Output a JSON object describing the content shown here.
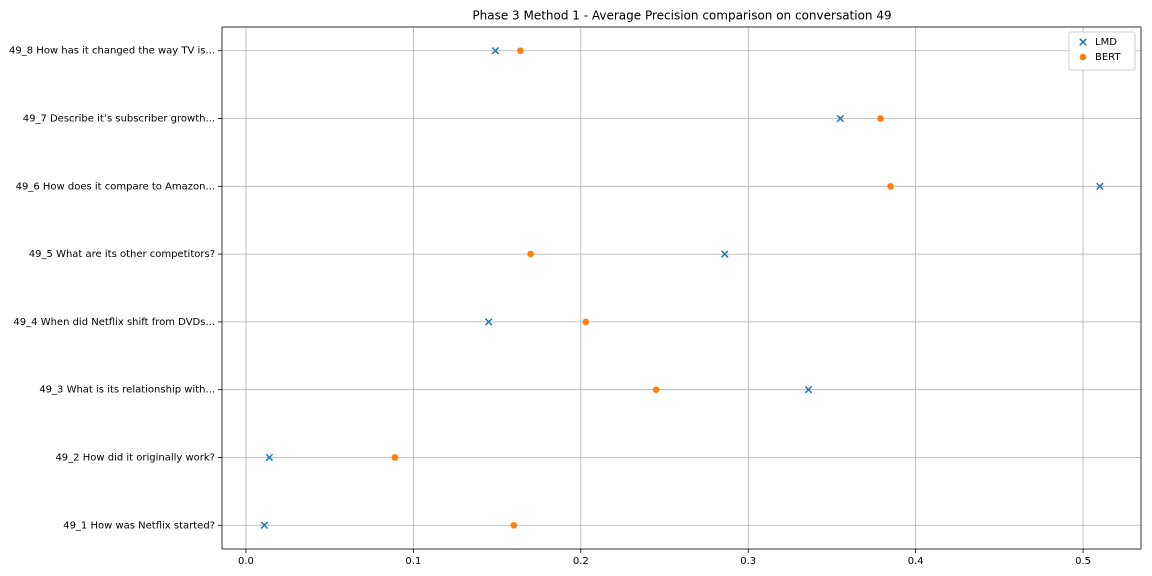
{
  "chart_data": {
    "type": "scatter",
    "title": "Phase 3 Method 1 - Average Precision comparison on conversation 49",
    "categories": [
      "49_1 How was Netflix started?",
      "49_2 How did it originally work?",
      "49_3 What is its relationship with...",
      "49_4 When did Netflix shift from DVDs...",
      "49_5 What are its other competitors?",
      "49_6 How does it compare to Amazon...",
      "49_7 Describe it’s subscriber growth...",
      "49_8 How has it changed the way TV is..."
    ],
    "series": [
      {
        "name": "LMD",
        "color": "#1f77b4",
        "marker": "x",
        "values": [
          0.011,
          0.014,
          0.336,
          0.145,
          0.286,
          0.51,
          0.355,
          0.149
        ]
      },
      {
        "name": "BERT",
        "color": "#ff7f0e",
        "marker": "o",
        "values": [
          0.16,
          0.089,
          0.245,
          0.203,
          0.17,
          0.385,
          0.379,
          0.164
        ]
      }
    ],
    "xlim": [
      -0.0143,
      0.5346
    ],
    "xticks": [
      {
        "value": 0,
        "label": "0.0"
      },
      0.1,
      0.2,
      0.3,
      0.4,
      0.5
    ],
    "grid": true,
    "legend": "upper right"
  }
}
